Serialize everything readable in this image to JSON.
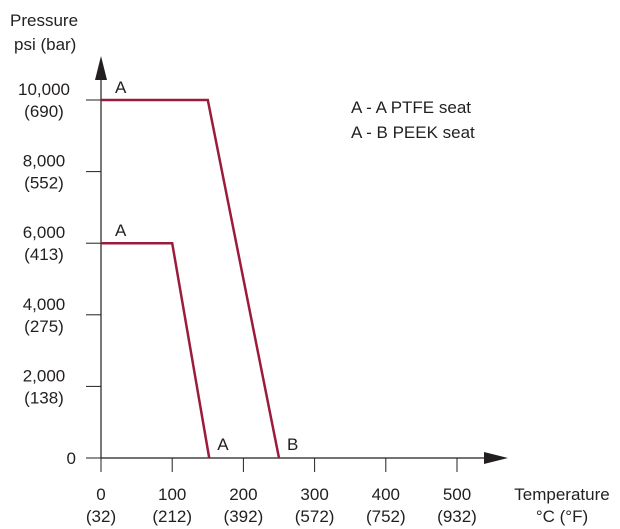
{
  "chart_data": {
    "type": "line",
    "ylabel": [
      "Pressure",
      "psi (bar)"
    ],
    "xlabel": [
      "Temperature",
      "°C (°F)"
    ],
    "xlim": [
      0,
      500
    ],
    "ylim": [
      0,
      10000
    ],
    "xticks": [
      {
        "value": 0,
        "label": "0",
        "sublabel": "(32)"
      },
      {
        "value": 100,
        "label": "100",
        "sublabel": "(212)"
      },
      {
        "value": 200,
        "label": "200",
        "sublabel": "(392)"
      },
      {
        "value": 300,
        "label": "300",
        "sublabel": "(572)"
      },
      {
        "value": 400,
        "label": "400",
        "sublabel": "(752)"
      },
      {
        "value": 500,
        "label": "500",
        "sublabel": "(932)"
      }
    ],
    "yticks": [
      {
        "value": 0,
        "label": "0",
        "sublabel": ""
      },
      {
        "value": 2000,
        "label": "2,000",
        "sublabel": "(138)"
      },
      {
        "value": 4000,
        "label": "4,000",
        "sublabel": "(275)"
      },
      {
        "value": 6000,
        "label": "6,000",
        "sublabel": "(413)"
      },
      {
        "value": 8000,
        "label": "8,000",
        "sublabel": "(552)"
      },
      {
        "value": 10000,
        "label": "10,000",
        "sublabel": "(690)"
      }
    ],
    "series": [
      {
        "start_label": "A",
        "end_label": "A",
        "x": [
          0,
          100,
          152
        ],
        "y": [
          6000,
          6000,
          0
        ]
      },
      {
        "start_label": "A",
        "end_label": "B",
        "x": [
          0,
          150,
          250
        ],
        "y": [
          10000,
          10000,
          0
        ]
      }
    ],
    "legend": {
      "position": "top-right",
      "entries": [
        "A - A PTFE seat",
        "A - B PEEK seat"
      ]
    },
    "grid": false,
    "colors": {
      "series": "#9b1b3c",
      "axis": "#231f20"
    }
  }
}
